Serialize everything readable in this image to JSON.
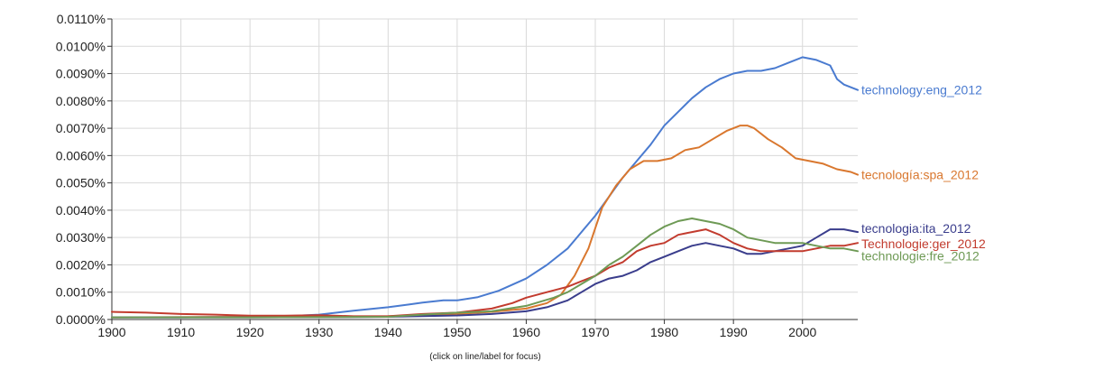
{
  "chart_data": {
    "type": "line",
    "x_range": [
      1900,
      2008
    ],
    "ylim": [
      0,
      0.011
    ],
    "y_unit": "%",
    "x_ticks": [
      1900,
      1910,
      1920,
      1930,
      1940,
      1950,
      1960,
      1970,
      1980,
      1990,
      2000
    ],
    "y_ticks": [
      "0.0000%",
      "0.0010%",
      "0.0020%",
      "0.0030%",
      "0.0040%",
      "0.0050%",
      "0.0060%",
      "0.0070%",
      "0.0080%",
      "0.0090%",
      "0.0100%",
      "0.0110%"
    ],
    "grid": true,
    "footnote": "(click on line/label for focus)",
    "series": [
      {
        "name": "technology:eng_2012",
        "color": "#4a7bd0",
        "points": [
          [
            1900,
            8e-05
          ],
          [
            1910,
            8e-05
          ],
          [
            1920,
            0.0001
          ],
          [
            1925,
            0.00012
          ],
          [
            1930,
            0.00018
          ],
          [
            1935,
            0.00032
          ],
          [
            1940,
            0.00045
          ],
          [
            1943,
            0.00055
          ],
          [
            1945,
            0.00062
          ],
          [
            1948,
            0.0007
          ],
          [
            1950,
            0.0007
          ],
          [
            1953,
            0.00082
          ],
          [
            1956,
            0.00105
          ],
          [
            1960,
            0.0015
          ],
          [
            1963,
            0.002
          ],
          [
            1966,
            0.0026
          ],
          [
            1968,
            0.0032
          ],
          [
            1970,
            0.0038
          ],
          [
            1972,
            0.0045
          ],
          [
            1974,
            0.0052
          ],
          [
            1976,
            0.0058
          ],
          [
            1978,
            0.0064
          ],
          [
            1980,
            0.0071
          ],
          [
            1982,
            0.0076
          ],
          [
            1984,
            0.0081
          ],
          [
            1986,
            0.0085
          ],
          [
            1988,
            0.0088
          ],
          [
            1990,
            0.009
          ],
          [
            1992,
            0.0091
          ],
          [
            1994,
            0.0091
          ],
          [
            1996,
            0.0092
          ],
          [
            1998,
            0.0094
          ],
          [
            2000,
            0.0096
          ],
          [
            2002,
            0.0095
          ],
          [
            2004,
            0.0093
          ],
          [
            2005,
            0.0088
          ],
          [
            2006,
            0.0086
          ],
          [
            2008,
            0.0084
          ]
        ]
      },
      {
        "name": "tecnología:spa_2012",
        "color": "#d9772e",
        "points": [
          [
            1900,
            8e-05
          ],
          [
            1920,
            0.0001
          ],
          [
            1940,
            0.00012
          ],
          [
            1950,
            0.0002
          ],
          [
            1955,
            0.00028
          ],
          [
            1960,
            0.0004
          ],
          [
            1963,
            0.0006
          ],
          [
            1965,
            0.0009
          ],
          [
            1967,
            0.0016
          ],
          [
            1969,
            0.0026
          ],
          [
            1971,
            0.0041
          ],
          [
            1973,
            0.0049
          ],
          [
            1975,
            0.0055
          ],
          [
            1977,
            0.0058
          ],
          [
            1979,
            0.0058
          ],
          [
            1981,
            0.0059
          ],
          [
            1983,
            0.0062
          ],
          [
            1985,
            0.0063
          ],
          [
            1987,
            0.0066
          ],
          [
            1989,
            0.0069
          ],
          [
            1991,
            0.0071
          ],
          [
            1992,
            0.0071
          ],
          [
            1993,
            0.007
          ],
          [
            1995,
            0.0066
          ],
          [
            1997,
            0.0063
          ],
          [
            1999,
            0.0059
          ],
          [
            2001,
            0.0058
          ],
          [
            2003,
            0.0057
          ],
          [
            2005,
            0.0055
          ],
          [
            2007,
            0.0054
          ],
          [
            2008,
            0.0053
          ]
        ]
      },
      {
        "name": "tecnologia:ita_2012",
        "color": "#3a3d8c",
        "points": [
          [
            1900,
            8e-05
          ],
          [
            1920,
            8e-05
          ],
          [
            1940,
            0.0001
          ],
          [
            1950,
            0.00015
          ],
          [
            1955,
            0.0002
          ],
          [
            1960,
            0.0003
          ],
          [
            1963,
            0.00045
          ],
          [
            1966,
            0.0007
          ],
          [
            1968,
            0.001
          ],
          [
            1970,
            0.0013
          ],
          [
            1972,
            0.0015
          ],
          [
            1974,
            0.0016
          ],
          [
            1976,
            0.0018
          ],
          [
            1978,
            0.0021
          ],
          [
            1980,
            0.0023
          ],
          [
            1982,
            0.0025
          ],
          [
            1984,
            0.0027
          ],
          [
            1986,
            0.0028
          ],
          [
            1988,
            0.0027
          ],
          [
            1990,
            0.0026
          ],
          [
            1992,
            0.0024
          ],
          [
            1994,
            0.0024
          ],
          [
            1996,
            0.0025
          ],
          [
            1998,
            0.0026
          ],
          [
            2000,
            0.0027
          ],
          [
            2002,
            0.003
          ],
          [
            2004,
            0.0033
          ],
          [
            2006,
            0.0033
          ],
          [
            2008,
            0.0032
          ]
        ]
      },
      {
        "name": "Technologie:ger_2012",
        "color": "#c23b2e",
        "points": [
          [
            1900,
            0.00028
          ],
          [
            1905,
            0.00025
          ],
          [
            1910,
            0.0002
          ],
          [
            1915,
            0.00018
          ],
          [
            1920,
            0.00014
          ],
          [
            1925,
            0.00014
          ],
          [
            1930,
            0.00016
          ],
          [
            1935,
            0.00012
          ],
          [
            1940,
            0.00012
          ],
          [
            1945,
            0.0002
          ],
          [
            1950,
            0.00025
          ],
          [
            1955,
            0.0004
          ],
          [
            1958,
            0.0006
          ],
          [
            1960,
            0.0008
          ],
          [
            1963,
            0.001
          ],
          [
            1966,
            0.0012
          ],
          [
            1968,
            0.0014
          ],
          [
            1970,
            0.0016
          ],
          [
            1972,
            0.0019
          ],
          [
            1974,
            0.0021
          ],
          [
            1976,
            0.0025
          ],
          [
            1978,
            0.0027
          ],
          [
            1980,
            0.0028
          ],
          [
            1982,
            0.0031
          ],
          [
            1984,
            0.0032
          ],
          [
            1986,
            0.0033
          ],
          [
            1988,
            0.0031
          ],
          [
            1990,
            0.0028
          ],
          [
            1992,
            0.0026
          ],
          [
            1994,
            0.0025
          ],
          [
            1996,
            0.0025
          ],
          [
            1998,
            0.0025
          ],
          [
            2000,
            0.0025
          ],
          [
            2002,
            0.0026
          ],
          [
            2004,
            0.0027
          ],
          [
            2006,
            0.0027
          ],
          [
            2008,
            0.0028
          ]
        ]
      },
      {
        "name": "technologie:fre_2012",
        "color": "#6e9a55",
        "points": [
          [
            1900,
            8e-05
          ],
          [
            1920,
            8e-05
          ],
          [
            1940,
            0.0001
          ],
          [
            1945,
            0.00018
          ],
          [
            1950,
            0.00025
          ],
          [
            1955,
            0.0003
          ],
          [
            1960,
            0.0005
          ],
          [
            1964,
            0.0008
          ],
          [
            1966,
            0.001
          ],
          [
            1968,
            0.0013
          ],
          [
            1970,
            0.0016
          ],
          [
            1972,
            0.002
          ],
          [
            1974,
            0.0023
          ],
          [
            1976,
            0.0027
          ],
          [
            1978,
            0.0031
          ],
          [
            1980,
            0.0034
          ],
          [
            1982,
            0.0036
          ],
          [
            1984,
            0.0037
          ],
          [
            1986,
            0.0036
          ],
          [
            1988,
            0.0035
          ],
          [
            1990,
            0.0033
          ],
          [
            1992,
            0.003
          ],
          [
            1994,
            0.0029
          ],
          [
            1996,
            0.0028
          ],
          [
            1998,
            0.0028
          ],
          [
            2000,
            0.0028
          ],
          [
            2002,
            0.0027
          ],
          [
            2004,
            0.0026
          ],
          [
            2006,
            0.0026
          ],
          [
            2008,
            0.0025
          ]
        ]
      }
    ]
  }
}
